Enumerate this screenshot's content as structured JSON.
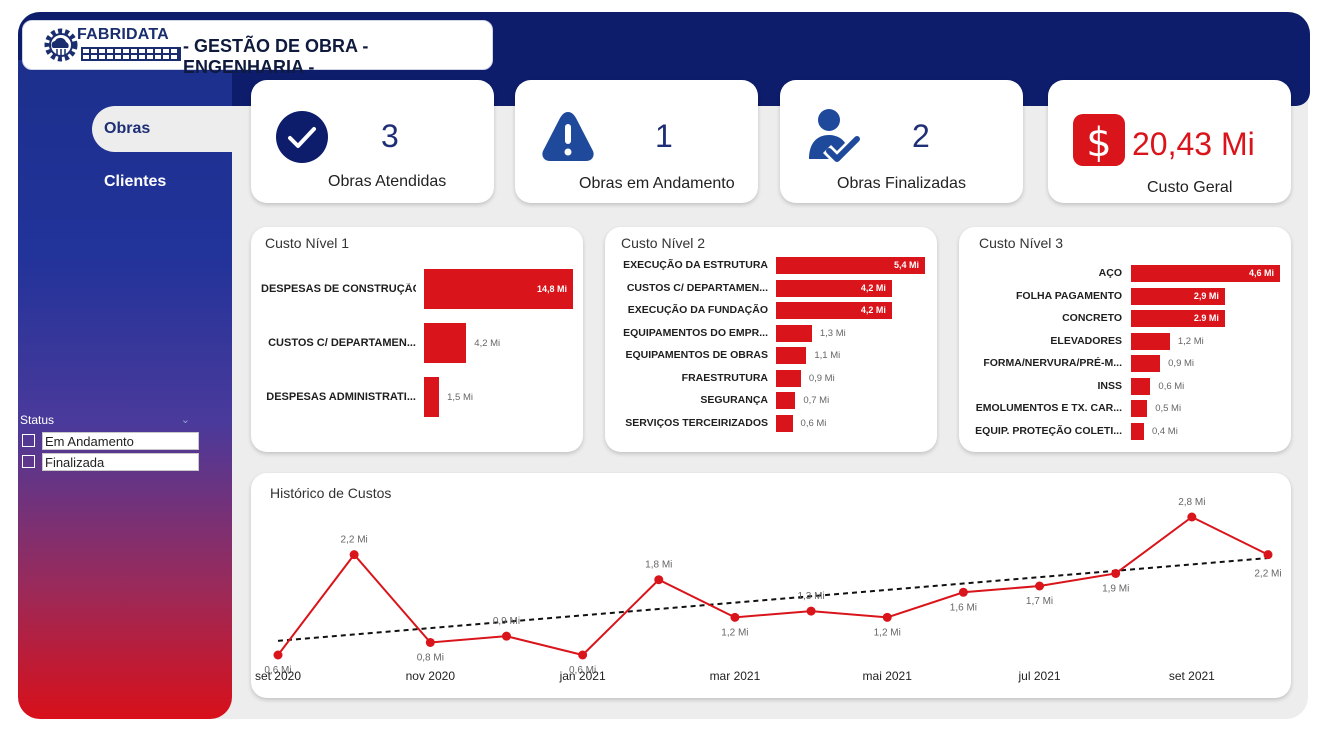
{
  "header": {
    "brand_name": "FABRIDATA",
    "title": "- GESTÃO DE OBRA - ENGENHARIA -"
  },
  "sidebar": {
    "items": [
      {
        "label": "Obras"
      },
      {
        "label": "Clientes"
      }
    ],
    "filter": {
      "title": "Status",
      "options": [
        {
          "label": "Em Andamento",
          "checked": false
        },
        {
          "label": "Finalizada",
          "checked": false
        }
      ]
    }
  },
  "kpis": [
    {
      "icon": "check-circle-icon",
      "value": "3",
      "label": "Obras Atendidas",
      "color": "#1f2f75"
    },
    {
      "icon": "warning-icon",
      "value": "1",
      "label": "Obras em Andamento",
      "color": "#1f2f75"
    },
    {
      "icon": "user-check-icon",
      "value": "2",
      "label": "Obras Finalizadas",
      "color": "#1f2f75"
    },
    {
      "icon": "dollar-icon",
      "value": "20,43 Mi",
      "label": "Custo Geral",
      "color": "#d9141b"
    }
  ],
  "colors": {
    "navy": "#0d1d6b",
    "accent_red": "#d9141b",
    "kpi_blue": "#1f2f75"
  },
  "chart_data": [
    {
      "type": "bar",
      "orientation": "horizontal",
      "title": "Custo Nível 1",
      "categories": [
        "DESPESAS DE CONSTRUÇÃO",
        "CUSTOS C/ DEPARTAMEN...",
        "DESPESAS ADMINISTRATI..."
      ],
      "values": [
        14.8,
        4.2,
        1.5
      ],
      "labels": [
        "14,8 Mi",
        "4,2 Mi",
        "1,5 Mi"
      ]
    },
    {
      "type": "bar",
      "orientation": "horizontal",
      "title": "Custo Nível 2",
      "categories": [
        "EXECUÇÃO DA ESTRUTURA",
        "CUSTOS C/ DEPARTAMEN...",
        "EXECUÇÃO DA FUNDAÇÃO",
        "EQUIPAMENTOS DO EMPR...",
        "EQUIPAMENTOS DE OBRAS",
        "FRAESTRUTURA",
        "SEGURANÇA",
        "SERVIÇOS TERCEIRIZADOS"
      ],
      "values": [
        5.4,
        4.2,
        4.2,
        1.3,
        1.1,
        0.9,
        0.7,
        0.6
      ],
      "labels": [
        "5,4 Mi",
        "4,2 Mi",
        "4,2 Mi",
        "1,3 Mi",
        "1,1 Mi",
        "0,9 Mi",
        "0,7 Mi",
        "0,6 Mi"
      ]
    },
    {
      "type": "bar",
      "orientation": "horizontal",
      "title": "Custo Nível 3",
      "categories": [
        "AÇO",
        "FOLHA PAGAMENTO",
        "CONCRETO",
        "ELEVADORES",
        "FORMA/NERVURA/PRÉ-M...",
        "INSS",
        "EMOLUMENTOS E TX. CAR...",
        "EQUIP. PROTEÇÃO COLETI..."
      ],
      "values": [
        4.6,
        2.9,
        2.9,
        1.2,
        0.9,
        0.6,
        0.5,
        0.4
      ],
      "labels": [
        "4,6 Mi",
        "2,9 Mi",
        "2.9 Mi",
        "1,2 Mi",
        "0,9 Mi",
        "0,6 Mi",
        "0,5 Mi",
        "0,4 Mi"
      ]
    },
    {
      "type": "line",
      "title": "Histórico de Custos",
      "x": [
        "2020-09",
        "2020-10",
        "2020-11",
        "2020-12",
        "2021-01",
        "2021-02",
        "2021-03",
        "2021-04",
        "2021-05",
        "2021-06",
        "2021-07",
        "2021-08",
        "2021-09",
        "2021-10"
      ],
      "xtick_labels": [
        "set 2020",
        "nov 2020",
        "jan 2021",
        "mar 2021",
        "mai 2021",
        "jul 2021",
        "set 2021"
      ],
      "xtick_index": [
        0,
        2,
        4,
        6,
        8,
        10,
        12
      ],
      "values": [
        0.6,
        2.2,
        0.8,
        0.9,
        0.6,
        1.8,
        1.2,
        1.3,
        1.2,
        1.6,
        1.7,
        1.9,
        2.8,
        2.2
      ],
      "labels": [
        "0,6 Mi",
        "2,2 Mi",
        "0,8 Mi",
        "0,9 Mi",
        "0,6 Mi",
        "1,8 Mi",
        "1,2 Mi",
        "1,3 Mi",
        "1,2 Mi",
        "1,6 Mi",
        "1,7 Mi",
        "1,9 Mi",
        "2,8 Mi",
        "2,2 Mi"
      ],
      "trendline": true,
      "line_color": "#d9141b"
    }
  ]
}
